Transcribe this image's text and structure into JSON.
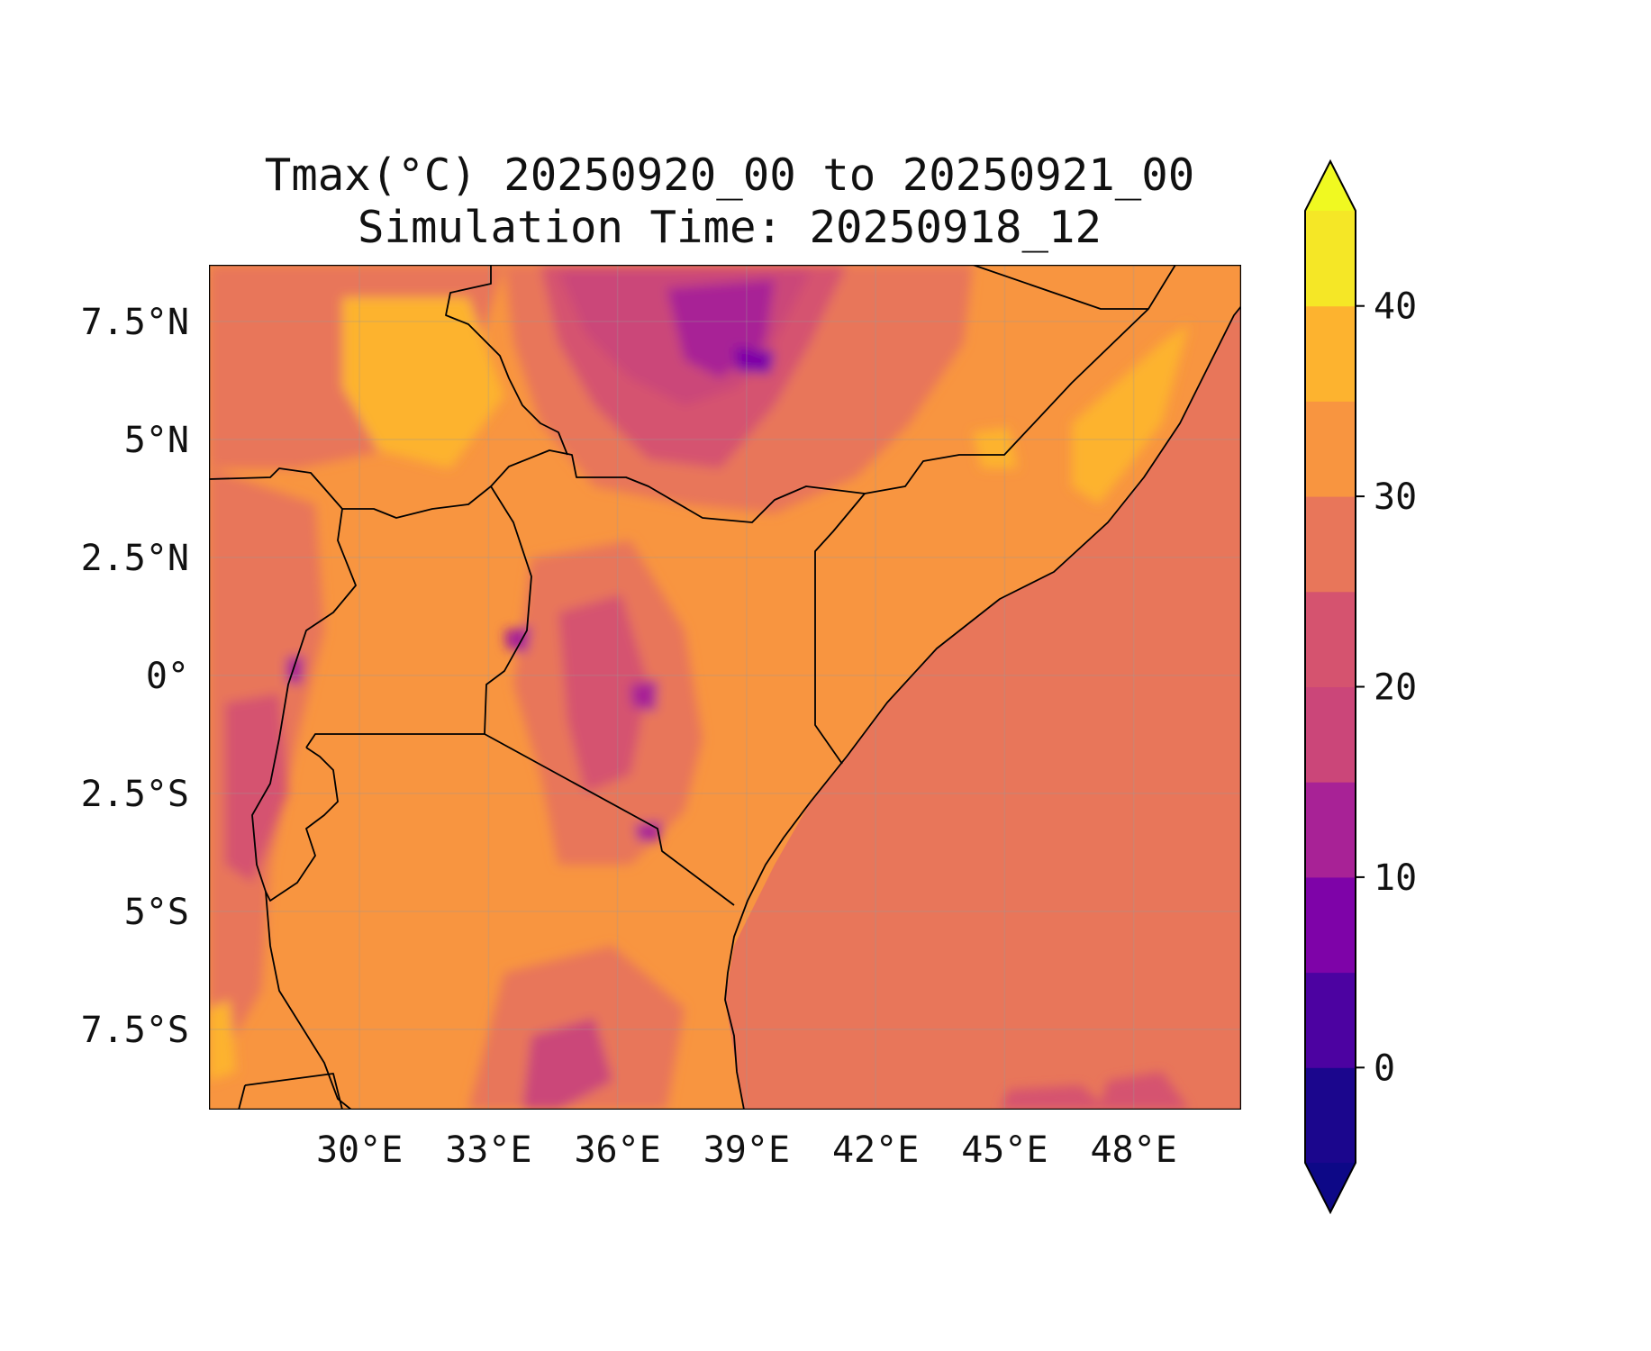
{
  "title_line1": "Tmax(°C) 20250920_00 to 20250921_00",
  "title_line2": "Simulation Time: 20250918_12",
  "map": {
    "projection": "PlateCarree",
    "lon_range": [
      26.5,
      50.5
    ],
    "lat_range": [
      -9.2,
      8.7
    ],
    "gridlines": true,
    "coastlines": true,
    "borders": true,
    "x_ticks": [
      {
        "value": 30,
        "label": "30°E"
      },
      {
        "value": 33,
        "label": "33°E"
      },
      {
        "value": 36,
        "label": "36°E"
      },
      {
        "value": 39,
        "label": "39°E"
      },
      {
        "value": 42,
        "label": "42°E"
      },
      {
        "value": 45,
        "label": "45°E"
      },
      {
        "value": 48,
        "label": "48°E"
      }
    ],
    "y_ticks": [
      {
        "value": 7.5,
        "label": "7.5°N"
      },
      {
        "value": 5,
        "label": "5°N"
      },
      {
        "value": 2.5,
        "label": "2.5°N"
      },
      {
        "value": 0,
        "label": "0°"
      },
      {
        "value": -2.5,
        "label": "2.5°S"
      },
      {
        "value": -5,
        "label": "5°S"
      },
      {
        "value": -7.5,
        "label": "7.5°S"
      }
    ]
  },
  "colorbar": {
    "colormap": "plasma",
    "levels": [
      -5,
      0,
      5,
      10,
      15,
      20,
      25,
      30,
      35,
      40,
      45
    ],
    "extend": "both",
    "colors": [
      "#1b068d",
      "#4c02a1",
      "#7e03a8",
      "#a82296",
      "#cb4679",
      "#d5536f",
      "#e8765a",
      "#f89540",
      "#fdb32f",
      "#f5e726"
    ],
    "under_color": "#0d0887",
    "over_color": "#f0f921",
    "ticks": [
      {
        "value": 0,
        "label": "0"
      },
      {
        "value": 10,
        "label": "10"
      },
      {
        "value": 20,
        "label": "20"
      },
      {
        "value": 30,
        "label": "30"
      },
      {
        "value": 40,
        "label": "40"
      }
    ]
  }
}
